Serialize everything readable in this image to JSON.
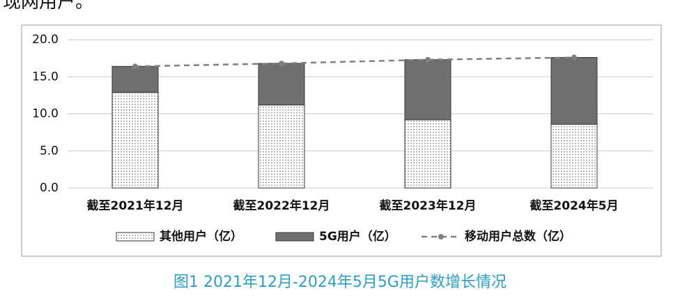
{
  "header_text": "现网用户。",
  "chart_data": {
    "type": "bar",
    "stacked": true,
    "categories": [
      "截至2021年12月",
      "截至2022年12月",
      "截至2023年12月",
      "截至2024年5月"
    ],
    "series": [
      {
        "name": "其他用户（亿）",
        "color": "#555555",
        "fill": "dots",
        "values": [
          12.9,
          11.2,
          9.2,
          8.6
        ]
      },
      {
        "name": "5G用户（亿）",
        "color": "#707070",
        "values": [
          3.5,
          5.6,
          8.1,
          9.0
        ]
      },
      {
        "name": "移动用户总数（亿）",
        "color": "#808080",
        "type": "line",
        "dashed": true,
        "values": [
          16.4,
          16.8,
          17.3,
          17.6
        ]
      }
    ],
    "ylim": [
      0,
      20
    ],
    "yticks": [
      {
        "value": 0,
        "label": "0.0"
      },
      {
        "value": 5,
        "label": "5.0"
      },
      {
        "value": 10,
        "label": "10.0"
      },
      {
        "value": 15,
        "label": "15.0"
      },
      {
        "value": 20,
        "label": "20.0"
      }
    ],
    "grid": true,
    "legend": "bottom",
    "caption": "图1 2021年12月-2024年5月5G用户数增长情况"
  }
}
